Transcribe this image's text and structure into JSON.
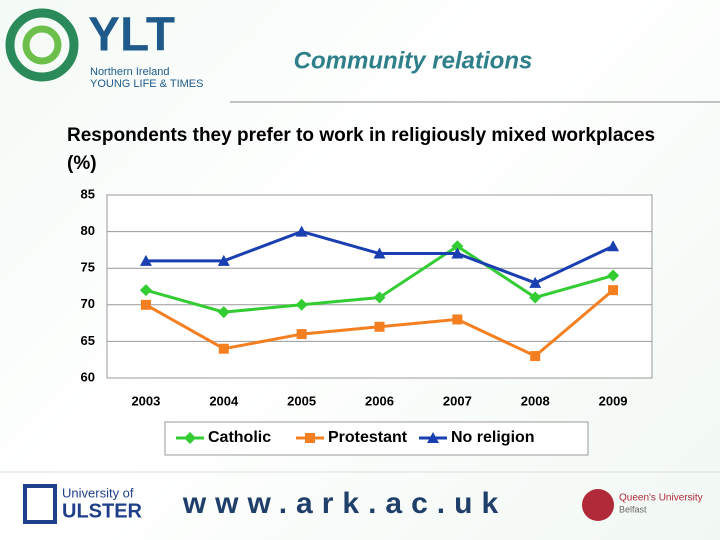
{
  "header": {
    "logo_title": "YLT",
    "logo_line1": "Northern Ireland",
    "logo_line2": "YOUNG LIFE & TIMES",
    "title": "Community relations"
  },
  "footer": {
    "ulster_line1": "University of",
    "ulster_line2": "ULSTER",
    "url": "www.ark.ac.uk",
    "queens_line1": "Queen's University",
    "queens_line2": "Belfast"
  },
  "chart_data": {
    "type": "line",
    "title": "Respondents they prefer to work in religiously mixed workplaces (%)",
    "categories": [
      "2003",
      "2004",
      "2005",
      "2006",
      "2007",
      "2008",
      "2009"
    ],
    "series": [
      {
        "name": "Catholic",
        "color": "#33cc33",
        "marker": "diamond",
        "values": [
          72,
          69,
          70,
          71,
          78,
          71,
          74
        ]
      },
      {
        "name": "Protestant",
        "color": "#f47f20",
        "marker": "square",
        "values": [
          70,
          64,
          66,
          67,
          68,
          63,
          72
        ]
      },
      {
        "name": "No religion",
        "color": "#1a3fb0",
        "marker": "triangle",
        "values": [
          76,
          76,
          80,
          77,
          77,
          73,
          78
        ]
      }
    ],
    "ylim": [
      60,
      85
    ],
    "yticks": [
      60,
      65,
      70,
      75,
      80,
      85
    ],
    "grid": true,
    "legend": "bottom"
  }
}
